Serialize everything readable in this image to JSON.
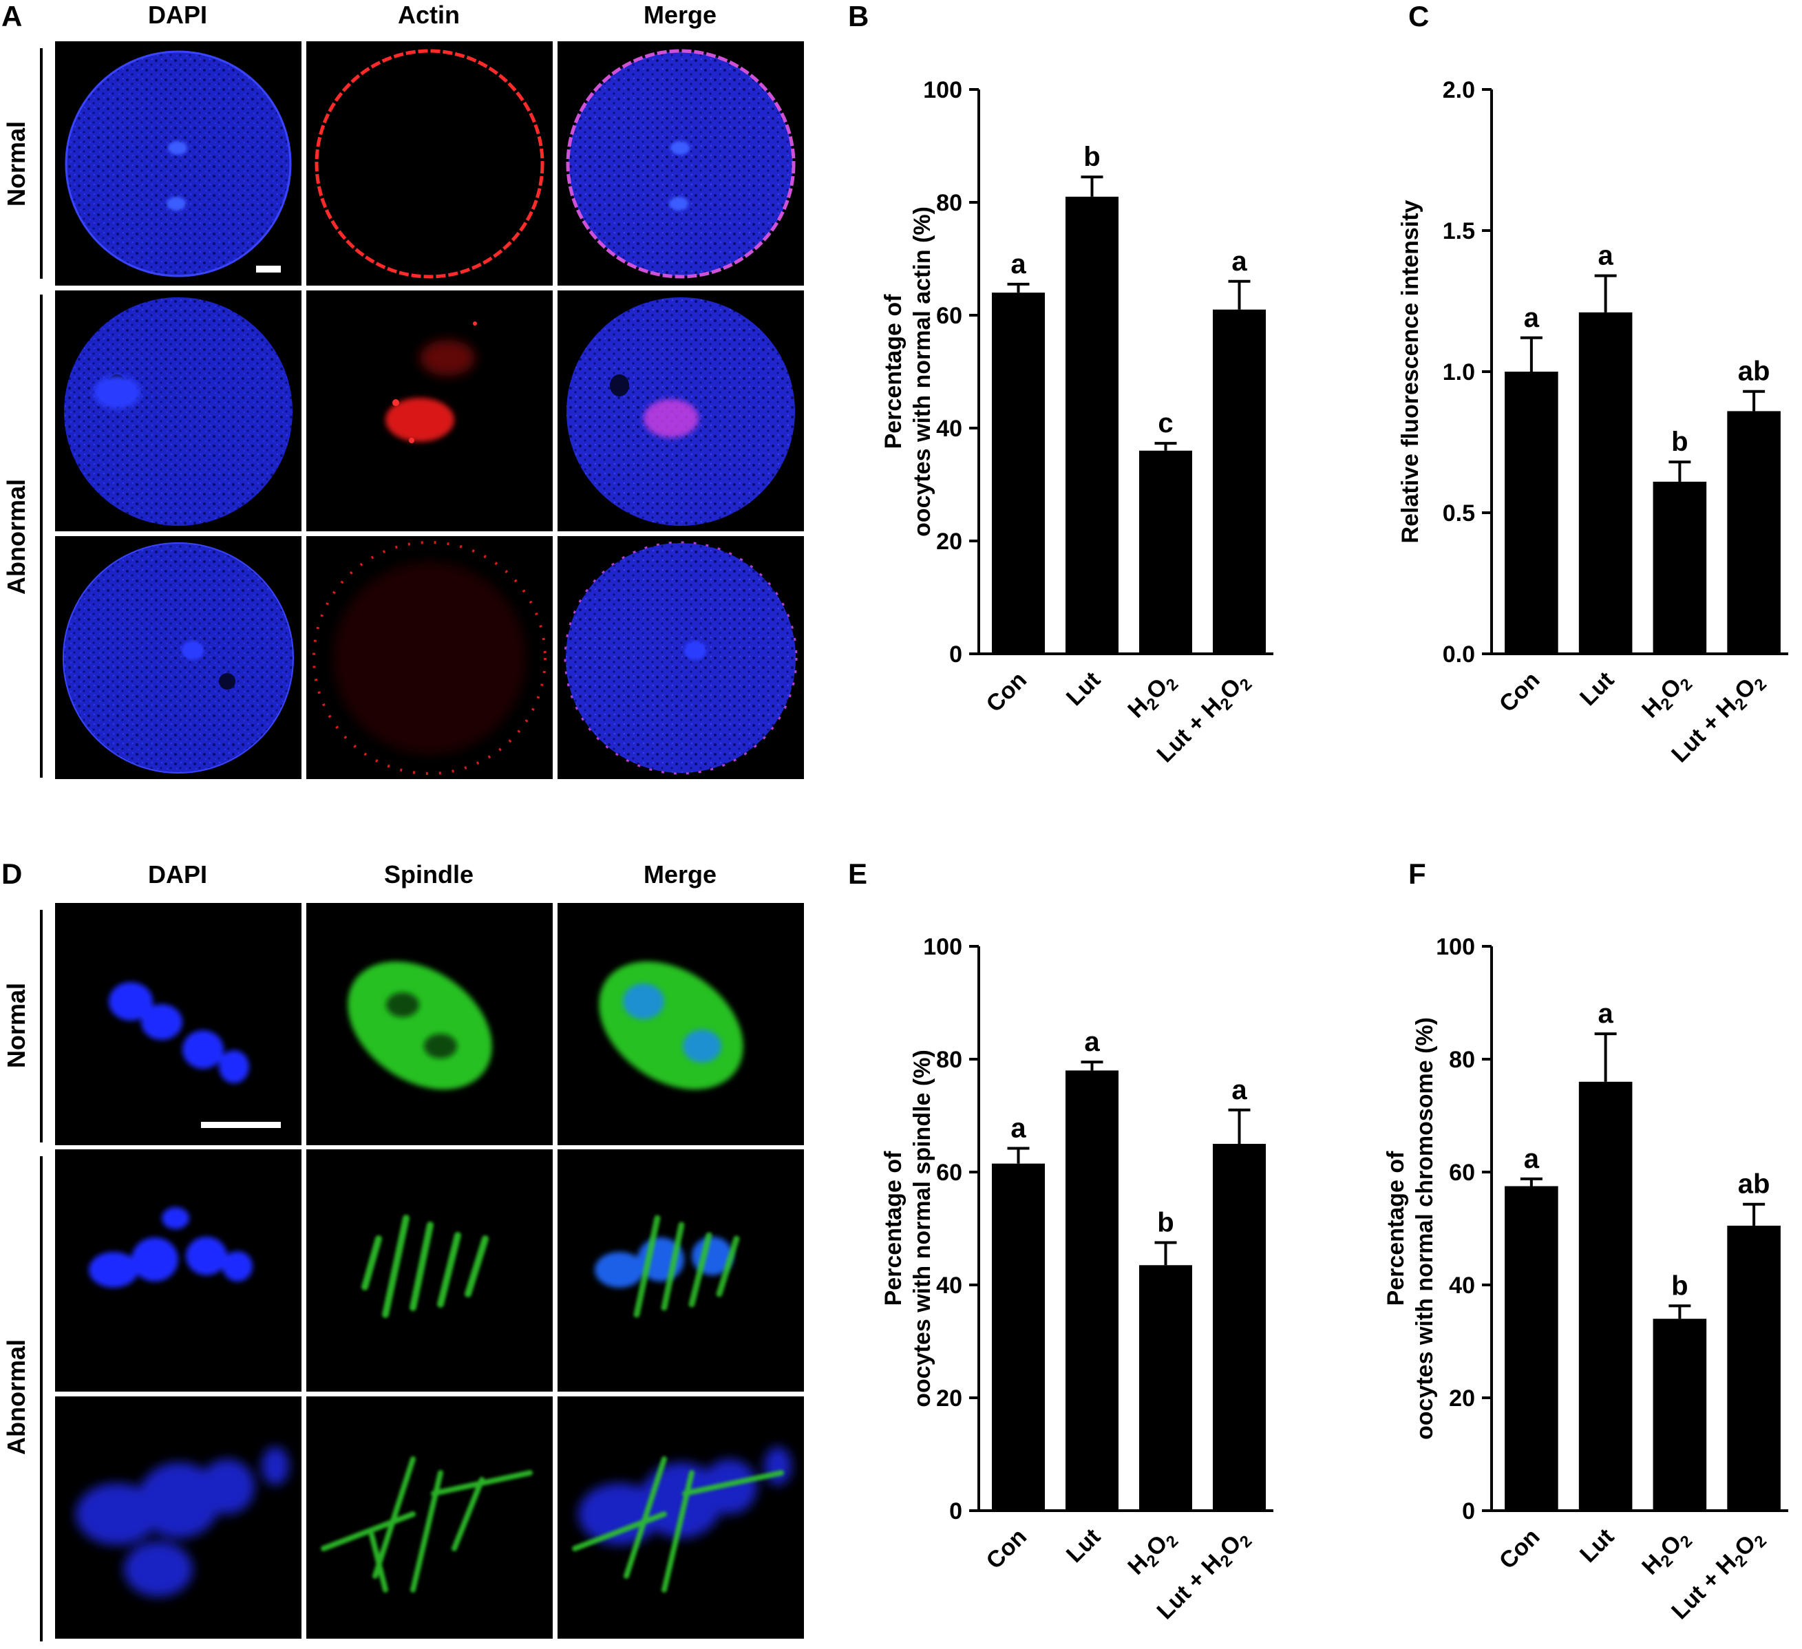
{
  "panels": {
    "A": {
      "letter": "A",
      "columns": [
        "DAPI",
        "Actin",
        "Merge"
      ],
      "rows": [
        "Normal",
        "Abnormal"
      ]
    },
    "D": {
      "letter": "D",
      "columns": [
        "DAPI",
        "Spindle",
        "Merge"
      ],
      "rows": [
        "Normal",
        "Abnormal"
      ]
    }
  },
  "chart_data": [
    {
      "panel": "B",
      "type": "bar",
      "categories": [
        "Con",
        "Lut",
        "H2O2",
        "Lut + H2O2"
      ],
      "values": [
        64,
        81,
        36,
        61
      ],
      "errors": [
        1.5,
        3.5,
        1.3,
        5
      ],
      "significance": [
        "a",
        "b",
        "c",
        "a"
      ],
      "ylabel_lines": [
        "Percentage of",
        "oocytes with normal actin (%)"
      ],
      "ylim": [
        0,
        100
      ],
      "yticks": [
        "0",
        "20",
        "40",
        "60",
        "80",
        "100"
      ]
    },
    {
      "panel": "C",
      "type": "bar",
      "categories": [
        "Con",
        "Lut",
        "H2O2",
        "Lut + H2O2"
      ],
      "values": [
        1.0,
        1.21,
        0.61,
        0.86
      ],
      "errors": [
        0.12,
        0.13,
        0.07,
        0.07
      ],
      "significance": [
        "a",
        "a",
        "b",
        "ab"
      ],
      "ylabel_lines": [
        "Relative fluorescence intensity"
      ],
      "ylim": [
        0,
        2.0
      ],
      "yticks": [
        "0.0",
        "0.5",
        "1.0",
        "1.5",
        "2.0"
      ]
    },
    {
      "panel": "E",
      "type": "bar",
      "categories": [
        "Con",
        "Lut",
        "H2O2",
        "Lut + H2O2"
      ],
      "values": [
        61.5,
        78,
        43.5,
        65
      ],
      "errors": [
        2.7,
        1.5,
        4,
        6
      ],
      "significance": [
        "a",
        "a",
        "b",
        "a"
      ],
      "ylabel_lines": [
        "Percentage of",
        "oocytes with normal spindle (%)"
      ],
      "ylim": [
        0,
        100
      ],
      "yticks": [
        "0",
        "20",
        "40",
        "60",
        "80",
        "100"
      ]
    },
    {
      "panel": "F",
      "type": "bar",
      "categories": [
        "Con",
        "Lut",
        "H2O2",
        "Lut + H2O2"
      ],
      "values": [
        57.5,
        76,
        34,
        50.5
      ],
      "errors": [
        1.3,
        8.5,
        2.3,
        3.8
      ],
      "significance": [
        "a",
        "a",
        "b",
        "ab"
      ],
      "ylabel_lines": [
        "Percentage of",
        "oocytes with normal chromosome (%)"
      ],
      "ylim": [
        0,
        100
      ],
      "yticks": [
        "0",
        "20",
        "40",
        "60",
        "80",
        "100"
      ]
    }
  ],
  "colors": {
    "bar": "#000000",
    "dapi": "#1a22d8",
    "actin": "#e01818",
    "spindle": "#2ec42a",
    "merge_overlap": "#c040c8",
    "image_background": "#000000"
  }
}
